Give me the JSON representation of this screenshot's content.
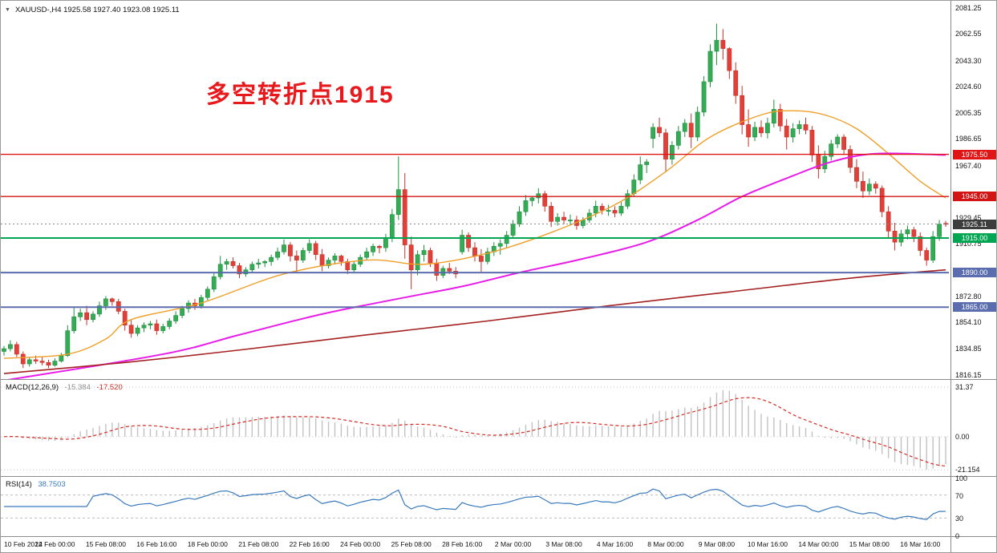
{
  "window": {
    "chart_title": "XAUUSD-,H4 1925.58 1927.40 1923.08 1925.11",
    "dropdown_icon": "▼"
  },
  "annotation": {
    "text": "多空转折点1915",
    "color": "#e8191c"
  },
  "chart_data": {
    "type": "candlestick",
    "symbol": "XAUUSD-",
    "timeframe": "H4",
    "current_bar": {
      "open": 1925.58,
      "high": 1927.4,
      "low": 1923.08,
      "close": 1925.11
    },
    "price_axis": {
      "min": 1813.0,
      "max": 2086.5,
      "ticks": [
        "2081.25",
        "2062.55",
        "2043.30",
        "2024.60",
        "2005.35",
        "1986.65",
        "1967.40",
        "1929.45",
        "1910.75",
        "1872.80",
        "1854.10",
        "1834.85",
        "1816.15"
      ]
    },
    "candle_colors": {
      "up_fill": "#36ab55",
      "up_stroke": "#1f8f3f",
      "down_fill": "#e23f38",
      "down_stroke": "#c0342c"
    },
    "candles": [
      [
        1833,
        1837,
        1830,
        1835
      ],
      [
        1835,
        1841,
        1833,
        1838
      ],
      [
        1838,
        1840,
        1829,
        1831
      ],
      [
        1831,
        1833,
        1821,
        1824
      ],
      [
        1824,
        1829,
        1822,
        1827
      ],
      [
        1827,
        1830,
        1824,
        1826
      ],
      [
        1826,
        1829,
        1823,
        1825
      ],
      [
        1825,
        1827,
        1821,
        1823
      ],
      [
        1823,
        1828,
        1822,
        1826
      ],
      [
        1826,
        1832,
        1825,
        1830
      ],
      [
        1830,
        1852,
        1829,
        1848
      ],
      [
        1848,
        1865,
        1846,
        1858
      ],
      [
        1858,
        1864,
        1855,
        1861
      ],
      [
        1861,
        1866,
        1852,
        1856
      ],
      [
        1856,
        1862,
        1854,
        1860
      ],
      [
        1860,
        1869,
        1858,
        1866
      ],
      [
        1866,
        1873,
        1863,
        1871
      ],
      [
        1871,
        1872,
        1866,
        1869
      ],
      [
        1869,
        1871,
        1860,
        1862
      ],
      [
        1862,
        1864,
        1848,
        1852
      ],
      [
        1852,
        1856,
        1843,
        1846
      ],
      [
        1846,
        1852,
        1844,
        1850
      ],
      [
        1850,
        1854,
        1847,
        1852
      ],
      [
        1852,
        1855,
        1849,
        1853
      ],
      [
        1853,
        1856,
        1845,
        1848
      ],
      [
        1848,
        1853,
        1846,
        1851
      ],
      [
        1851,
        1857,
        1849,
        1855
      ],
      [
        1855,
        1862,
        1853,
        1859
      ],
      [
        1859,
        1866,
        1857,
        1864
      ],
      [
        1864,
        1870,
        1861,
        1868
      ],
      [
        1868,
        1871,
        1863,
        1866
      ],
      [
        1866,
        1874,
        1864,
        1872
      ],
      [
        1872,
        1880,
        1870,
        1878
      ],
      [
        1878,
        1890,
        1876,
        1887
      ],
      [
        1887,
        1902,
        1885,
        1896
      ],
      [
        1896,
        1900,
        1892,
        1898
      ],
      [
        1898,
        1901,
        1893,
        1895
      ],
      [
        1895,
        1897,
        1886,
        1889
      ],
      [
        1889,
        1894,
        1887,
        1892
      ],
      [
        1892,
        1898,
        1890,
        1896
      ],
      [
        1896,
        1900,
        1893,
        1897
      ],
      [
        1897,
        1899,
        1894,
        1898
      ],
      [
        1898,
        1903,
        1895,
        1901
      ],
      [
        1901,
        1908,
        1899,
        1905
      ],
      [
        1905,
        1914,
        1903,
        1910
      ],
      [
        1910,
        1912,
        1898,
        1902
      ],
      [
        1902,
        1906,
        1890,
        1899
      ],
      [
        1899,
        1908,
        1897,
        1906
      ],
      [
        1906,
        1914,
        1904,
        1911
      ],
      [
        1911,
        1913,
        1899,
        1903
      ],
      [
        1903,
        1907,
        1891,
        1895
      ],
      [
        1895,
        1901,
        1893,
        1899
      ],
      [
        1899,
        1904,
        1896,
        1902
      ],
      [
        1902,
        1903,
        1895,
        1898
      ],
      [
        1898,
        1900,
        1889,
        1892
      ],
      [
        1892,
        1898,
        1890,
        1896
      ],
      [
        1896,
        1903,
        1894,
        1901
      ],
      [
        1901,
        1908,
        1899,
        1905
      ],
      [
        1905,
        1911,
        1902,
        1909
      ],
      [
        1909,
        1910,
        1904,
        1908
      ],
      [
        1908,
        1918,
        1905,
        1915
      ],
      [
        1915,
        1936,
        1912,
        1932
      ],
      [
        1932,
        1974,
        1928,
        1950
      ],
      [
        1950,
        1962,
        1900,
        1910
      ],
      [
        1910,
        1916,
        1878,
        1892
      ],
      [
        1892,
        1906,
        1888,
        1903
      ],
      [
        1903,
        1910,
        1898,
        1906
      ],
      [
        1906,
        1908,
        1894,
        1897
      ],
      [
        1897,
        1900,
        1884,
        1888
      ],
      [
        1888,
        1895,
        1886,
        1893
      ],
      [
        1893,
        1897,
        1889,
        1891
      ],
      [
        1891,
        1894,
        1886,
        1889
      ],
      [
        1905,
        1921,
        1903,
        1917
      ],
      [
        1917,
        1919,
        1905,
        1908
      ],
      [
        1908,
        1912,
        1898,
        1902
      ],
      [
        1902,
        1907,
        1890,
        1898
      ],
      [
        1898,
        1908,
        1896,
        1905
      ],
      [
        1905,
        1912,
        1902,
        1909
      ],
      [
        1909,
        1914,
        1903,
        1911
      ],
      [
        1911,
        1920,
        1908,
        1917
      ],
      [
        1917,
        1928,
        1915,
        1925
      ],
      [
        1925,
        1938,
        1923,
        1934
      ],
      [
        1934,
        1946,
        1931,
        1942
      ],
      [
        1942,
        1945,
        1938,
        1944
      ],
      [
        1944,
        1951,
        1940,
        1947
      ],
      [
        1947,
        1949,
        1934,
        1938
      ],
      [
        1938,
        1941,
        1923,
        1927
      ],
      [
        1927,
        1933,
        1924,
        1930
      ],
      [
        1930,
        1934,
        1925,
        1928
      ],
      [
        1928,
        1932,
        1924,
        1928
      ],
      [
        1928,
        1931,
        1921,
        1924
      ],
      [
        1924,
        1930,
        1922,
        1928
      ],
      [
        1928,
        1936,
        1926,
        1933
      ],
      [
        1933,
        1942,
        1930,
        1938
      ],
      [
        1938,
        1940,
        1932,
        1935
      ],
      [
        1935,
        1939,
        1931,
        1935
      ],
      [
        1935,
        1938,
        1930,
        1933
      ],
      [
        1933,
        1941,
        1931,
        1938
      ],
      [
        1938,
        1950,
        1936,
        1947
      ],
      [
        1947,
        1961,
        1945,
        1957
      ],
      [
        1957,
        1974,
        1954,
        1968
      ],
      [
        1968,
        1972,
        1962,
        1970
      ],
      [
        1987,
        1998,
        1980,
        1995
      ],
      [
        1995,
        2002,
        1988,
        1991
      ],
      [
        1991,
        1994,
        1963,
        1972
      ],
      [
        1972,
        1985,
        1968,
        1982
      ],
      [
        1982,
        1996,
        1979,
        1992
      ],
      [
        1992,
        2001,
        1988,
        1998
      ],
      [
        1998,
        2005,
        1980,
        1988
      ],
      [
        1988,
        2010,
        1985,
        2006
      ],
      [
        2006,
        2032,
        2003,
        2028
      ],
      [
        2028,
        2055,
        2024,
        2050
      ],
      [
        2050,
        2070,
        2040,
        2058
      ],
      [
        2058,
        2066,
        2044,
        2052
      ],
      [
        2052,
        2053,
        2030,
        2036
      ],
      [
        2036,
        2042,
        2012,
        2018
      ],
      [
        2018,
        2025,
        1990,
        1997
      ],
      [
        1997,
        2008,
        1981,
        1988
      ],
      [
        1988,
        1999,
        1985,
        1995
      ],
      [
        1995,
        2000,
        1988,
        1991
      ],
      [
        1991,
        2002,
        1987,
        1998
      ],
      [
        1998,
        2015,
        1995,
        2008
      ],
      [
        2008,
        2012,
        1992,
        1996
      ],
      [
        1996,
        2001,
        1979,
        1988
      ],
      [
        1988,
        1998,
        1984,
        1994
      ],
      [
        1994,
        2000,
        1990,
        1997
      ],
      [
        1997,
        2002,
        1990,
        1993
      ],
      [
        1993,
        1996,
        1970,
        1975
      ],
      [
        1975,
        1982,
        1958,
        1965
      ],
      [
        1965,
        1978,
        1962,
        1974
      ],
      [
        1974,
        1986,
        1971,
        1983
      ],
      [
        1983,
        1990,
        1980,
        1988
      ],
      [
        1988,
        1990,
        1975,
        1979
      ],
      [
        1979,
        1982,
        1962,
        1966
      ],
      [
        1966,
        1972,
        1951,
        1956
      ],
      [
        1956,
        1963,
        1944,
        1949
      ],
      [
        1949,
        1958,
        1946,
        1954
      ],
      [
        1954,
        1956,
        1947,
        1951
      ],
      [
        1951,
        1953,
        1930,
        1934
      ],
      [
        1934,
        1938,
        1915,
        1920
      ],
      [
        1920,
        1926,
        1906,
        1912
      ],
      [
        1912,
        1921,
        1909,
        1918
      ],
      [
        1918,
        1924,
        1914,
        1921
      ],
      [
        1921,
        1923,
        1912,
        1916
      ],
      [
        1916,
        1919,
        1902,
        1906
      ],
      [
        1906,
        1908,
        1895,
        1899
      ],
      [
        1899,
        1920,
        1897,
        1916
      ],
      [
        1916,
        1928,
        1913,
        1925
      ],
      [
        1925.58,
        1927.4,
        1923.08,
        1925.11
      ]
    ],
    "moving_averages": [
      {
        "name": "ma-fast",
        "color": "#ef9f28",
        "width": 1.4,
        "points": [
          [
            0,
            1828
          ],
          [
            10,
            1831
          ],
          [
            16,
            1842
          ],
          [
            20,
            1856
          ],
          [
            31,
            1868
          ],
          [
            44,
            1889
          ],
          [
            57,
            1899
          ],
          [
            66,
            1896
          ],
          [
            76,
            1904
          ],
          [
            86,
            1919
          ],
          [
            96,
            1939
          ],
          [
            104,
            1963
          ],
          [
            111,
            1988
          ],
          [
            119,
            2004
          ],
          [
            124,
            2007
          ],
          [
            129,
            2004
          ],
          [
            134,
            1994
          ],
          [
            139,
            1976
          ],
          [
            144,
            1956
          ],
          [
            148,
            1944
          ]
        ]
      },
      {
        "name": "ma-medium",
        "color": "#e81ce8",
        "width": 2,
        "points": [
          [
            0,
            1812
          ],
          [
            25,
            1831
          ],
          [
            37,
            1845
          ],
          [
            50,
            1860
          ],
          [
            63,
            1872
          ],
          [
            72,
            1880
          ],
          [
            81,
            1890
          ],
          [
            91,
            1900
          ],
          [
            101,
            1912
          ],
          [
            109,
            1928
          ],
          [
            116,
            1945
          ],
          [
            124,
            1960
          ],
          [
            130,
            1970
          ],
          [
            137,
            1976
          ],
          [
            148,
            1975
          ]
        ]
      },
      {
        "name": "ma-slow",
        "color": "#a52020",
        "width": 1.6,
        "points": [
          [
            0,
            1817
          ],
          [
            19,
            1825
          ],
          [
            37,
            1834
          ],
          [
            57,
            1845
          ],
          [
            76,
            1855
          ],
          [
            95,
            1866
          ],
          [
            114,
            1876
          ],
          [
            133,
            1886
          ],
          [
            148,
            1892
          ]
        ]
      }
    ],
    "hlines": [
      {
        "price": 1975.5,
        "label": "1975.50",
        "color": "#e01515",
        "width": 1.4
      },
      {
        "price": 1945.0,
        "label": "1945.00",
        "color": "#d21414",
        "width": 1.4
      },
      {
        "price": 1915.0,
        "label": "1915.00",
        "color": "#00a651",
        "width": 2
      },
      {
        "price": 1890.0,
        "label": "1890.00",
        "color": "#5b6dae",
        "width": 2
      },
      {
        "price": 1865.0,
        "label": "1865.00",
        "color": "#5b6dae",
        "width": 2
      }
    ],
    "current_price": {
      "value": 1925.11,
      "label": "1925.11",
      "bg": "#3d3d3d"
    },
    "time_labels": [
      "10 Feb 2022",
      "14 Feb 00:00",
      "15 Feb 08:00",
      "16 Feb 16:00",
      "18 Feb 00:00",
      "21 Feb 08:00",
      "22 Feb 16:00",
      "24 Feb 00:00",
      "25 Feb 08:00",
      "28 Feb 16:00",
      "2 Mar 00:00",
      "3 Mar 08:00",
      "4 Mar 16:00",
      "8 Mar 00:00",
      "9 Mar 08:00",
      "10 Mar 16:00",
      "14 Mar 00:00",
      "15 Mar 08:00",
      "16 Mar 16:00"
    ],
    "time_label_step": 8,
    "indicators": {
      "macd": {
        "title": "MACD(12,26,9)",
        "value_main": "-15.384",
        "value_signal": "-17.520",
        "params": [
          12,
          26,
          9
        ],
        "range": {
          "min": -24.5,
          "max": 35.5
        },
        "levels": [
          {
            "value": 31.37,
            "label": "31.37"
          },
          {
            "value": 0,
            "label": "0.00"
          },
          {
            "value": -21.154,
            "label": "-21.154"
          }
        ],
        "bar_color": "#c2c2c2",
        "signal_color": "#d42a22",
        "main_value_color": "#8f8f8f"
      },
      "rsi": {
        "title": "RSI(14)",
        "value": "38.7503",
        "period": 14,
        "range": {
          "min": 0,
          "max": 100
        },
        "levels": [
          {
            "value": 100,
            "label": "100",
            "dashed": false
          },
          {
            "value": 70,
            "label": "70",
            "dashed": true
          },
          {
            "value": 30,
            "label": "30",
            "dashed": true
          },
          {
            "value": 0,
            "label": "0",
            "dashed": false
          }
        ],
        "line_color": "#3a7abd"
      }
    }
  }
}
